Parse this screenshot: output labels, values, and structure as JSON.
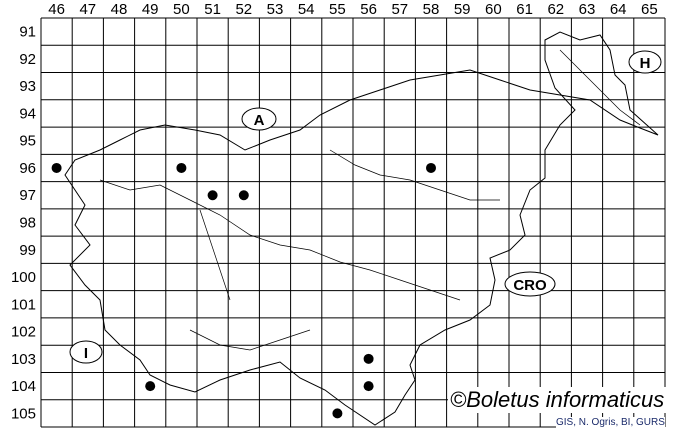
{
  "map": {
    "column_labels": [
      "46",
      "47",
      "48",
      "49",
      "50",
      "51",
      "52",
      "53",
      "54",
      "55",
      "56",
      "57",
      "58",
      "59",
      "60",
      "61",
      "62",
      "63",
      "64",
      "65"
    ],
    "row_labels": [
      "91",
      "92",
      "93",
      "94",
      "95",
      "96",
      "97",
      "98",
      "99",
      "100",
      "101",
      "102",
      "103",
      "104",
      "105"
    ],
    "country_labels": {
      "austria": "A",
      "hungary": "H",
      "croatia": "CRO",
      "italy": "I"
    },
    "occurrences": [
      {
        "col": "46",
        "row": "96"
      },
      {
        "col": "50",
        "row": "96"
      },
      {
        "col": "51",
        "row": "97"
      },
      {
        "col": "52",
        "row": "97"
      },
      {
        "col": "58",
        "row": "96"
      },
      {
        "col": "49",
        "row": "104"
      },
      {
        "col": "56",
        "row": "103"
      },
      {
        "col": "56",
        "row": "104"
      },
      {
        "col": "55",
        "row": "105"
      }
    ],
    "dot_color": "#000000"
  },
  "credit": "©Boletus informaticus",
  "source": "GIS, N. Ogris, BI, GURS"
}
